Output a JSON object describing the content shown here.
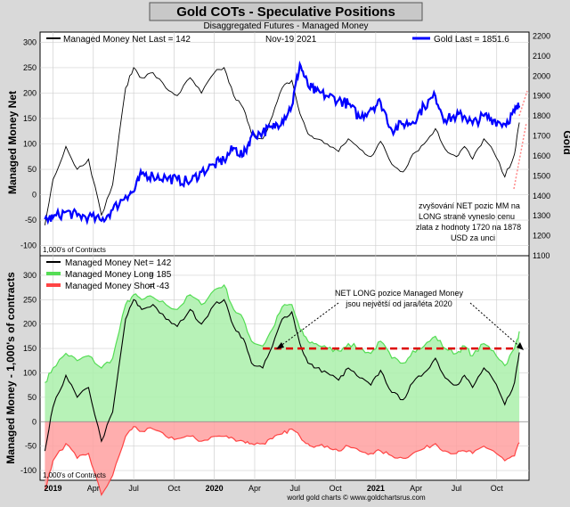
{
  "header": {
    "title": "Gold COTs - Speculative Positions",
    "subtitle": "Disaggregated Futures - Managed Money",
    "date": "Nov-19  2021"
  },
  "footer": {
    "credit": "world gold charts © www.goldchartsrus.com"
  },
  "colors": {
    "frame": "#d9d9d9",
    "panel": "#ffffff",
    "net": "#000000",
    "gold": "#0000ff",
    "long_stroke": "#55dd55",
    "long_fill": "#aaf0aa",
    "short_stroke": "#ff4444",
    "short_fill": "#ffa0a0",
    "title_bg": "#c8c8c8",
    "dash": "#dd0000",
    "arrow": "#ff8888"
  },
  "x_axis": {
    "ticks": [
      "2019",
      "Apr",
      "Jul",
      "Oct",
      "2020",
      "Apr",
      "Jul",
      "Oct",
      "2021",
      "Apr",
      "Jul",
      "Oct"
    ]
  },
  "chart_data": [
    {
      "type": "line",
      "panel": "top",
      "ylabel": "Managed Money Net",
      "y2label": "Gold",
      "ylim": [
        -120,
        320
      ],
      "y2lim": [
        1100,
        2220
      ],
      "y_ticks": [
        "-100",
        "-50",
        "0",
        "50",
        "100",
        "150",
        "200",
        "250",
        "300"
      ],
      "y2_ticks": [
        "1100",
        "1200",
        "1300",
        "1400",
        "1500",
        "1600",
        "1700",
        "1800",
        "1900",
        "2000",
        "2100",
        "2200"
      ],
      "units_note": "1,000's of Contracts",
      "legend": [
        {
          "name": "Managed Money Net",
          "text": "Last = 142",
          "color": "#000000"
        },
        {
          "name": "Gold Last = 1851.6",
          "color": "#0000ff"
        }
      ],
      "annotation": "zvyšování NET pozic MM na LONG straně vyneslo cenu zlata z hodnoty 1720 na 1878 USD za unci",
      "x": [
        2018.95,
        2019.0,
        2019.08,
        2019.15,
        2019.22,
        2019.3,
        2019.37,
        2019.45,
        2019.5,
        2019.55,
        2019.62,
        2019.7,
        2019.77,
        2019.85,
        2019.92,
        2020.0,
        2020.06,
        2020.12,
        2020.18,
        2020.23,
        2020.3,
        2020.36,
        2020.42,
        2020.48,
        2020.53,
        2020.58,
        2020.63,
        2020.7,
        2020.77,
        2020.83,
        2020.9,
        2020.97,
        2021.03,
        2021.1,
        2021.17,
        2021.23,
        2021.3,
        2021.37,
        2021.43,
        2021.5,
        2021.55,
        2021.6,
        2021.67,
        2021.73,
        2021.8,
        2021.86,
        2021.89
      ],
      "series": [
        {
          "name": "Managed Money Net",
          "unit": "1,000 contracts",
          "values": [
            -60,
            30,
            95,
            50,
            70,
            -40,
            20,
            210,
            250,
            230,
            240,
            210,
            195,
            230,
            200,
            240,
            250,
            195,
            170,
            120,
            110,
            155,
            210,
            225,
            160,
            120,
            110,
            100,
            85,
            110,
            90,
            75,
            105,
            60,
            45,
            80,
            100,
            130,
            90,
            75,
            95,
            70,
            110,
            85,
            35,
            80,
            142
          ]
        },
        {
          "name": "Gold",
          "unit": "USD",
          "values": [
            1282,
            1290,
            1320,
            1300,
            1295,
            1275,
            1330,
            1400,
            1420,
            1510,
            1500,
            1490,
            1480,
            1470,
            1520,
            1555,
            1580,
            1640,
            1600,
            1700,
            1720,
            1740,
            1780,
            1850,
            2060,
            1950,
            1920,
            1900,
            1880,
            1860,
            1790,
            1840,
            1870,
            1730,
            1760,
            1770,
            1850,
            1900,
            1780,
            1800,
            1800,
            1760,
            1800,
            1780,
            1760,
            1820,
            1851.6
          ]
        }
      ]
    },
    {
      "type": "area",
      "panel": "bottom",
      "ylabel": "Managed Money - 1,000's of contracts",
      "ylim": [
        -120,
        340
      ],
      "y_ticks": [
        "-100",
        "-50",
        "0",
        "50",
        "100",
        "150",
        "200",
        "250",
        "300"
      ],
      "units_note": "1,000's of Contracts",
      "annotation": "NET LONG pozice Managed Money jsou největší od jara/léta 2020",
      "dashed_level": 150,
      "legend": [
        {
          "name": "Managed Money Net",
          "value": "= 142",
          "color": "#000000"
        },
        {
          "name": "Managed Money Long",
          "value": "= 185",
          "color": "#55dd55"
        },
        {
          "name": "Managed Money Short",
          "value": "= -43",
          "color": "#ff4444"
        }
      ],
      "x": [
        2018.95,
        2019.0,
        2019.08,
        2019.15,
        2019.22,
        2019.3,
        2019.37,
        2019.45,
        2019.5,
        2019.55,
        2019.62,
        2019.7,
        2019.77,
        2019.85,
        2019.92,
        2020.0,
        2020.06,
        2020.12,
        2020.18,
        2020.23,
        2020.3,
        2020.36,
        2020.42,
        2020.48,
        2020.53,
        2020.58,
        2020.63,
        2020.7,
        2020.77,
        2020.83,
        2020.9,
        2020.97,
        2021.03,
        2021.1,
        2021.17,
        2021.23,
        2021.3,
        2021.37,
        2021.43,
        2021.5,
        2021.55,
        2021.6,
        2021.67,
        2021.73,
        2021.8,
        2021.86,
        2021.89
      ],
      "series": [
        {
          "name": "Managed Money Long",
          "values": [
            80,
            110,
            140,
            125,
            135,
            110,
            130,
            240,
            260,
            250,
            255,
            240,
            230,
            260,
            240,
            270,
            280,
            230,
            210,
            165,
            155,
            190,
            235,
            240,
            190,
            165,
            160,
            150,
            145,
            160,
            150,
            140,
            165,
            130,
            120,
            145,
            155,
            175,
            150,
            140,
            155,
            135,
            160,
            145,
            115,
            150,
            185
          ]
        },
        {
          "name": "Managed Money Short",
          "values": [
            -140,
            -80,
            -45,
            -75,
            -65,
            -150,
            -110,
            -30,
            -10,
            -20,
            -15,
            -30,
            -35,
            -30,
            -40,
            -30,
            -30,
            -35,
            -40,
            -45,
            -45,
            -35,
            -25,
            -15,
            -30,
            -45,
            -50,
            -50,
            -60,
            -50,
            -60,
            -65,
            -60,
            -70,
            -75,
            -65,
            -55,
            -45,
            -60,
            -65,
            -60,
            -65,
            -50,
            -60,
            -80,
            -70,
            -43
          ]
        },
        {
          "name": "Managed Money Net",
          "values": [
            -60,
            30,
            95,
            50,
            70,
            -40,
            20,
            210,
            250,
            230,
            240,
            210,
            195,
            230,
            200,
            240,
            250,
            195,
            170,
            120,
            110,
            155,
            210,
            225,
            160,
            120,
            110,
            100,
            85,
            110,
            90,
            75,
            105,
            60,
            45,
            80,
            100,
            130,
            90,
            75,
            95,
            70,
            110,
            85,
            35,
            80,
            142
          ]
        }
      ]
    }
  ]
}
